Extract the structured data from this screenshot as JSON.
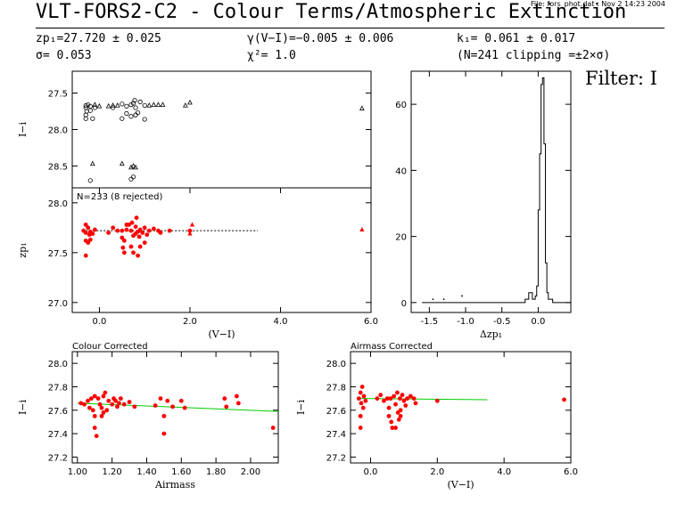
{
  "header": {
    "title": "VLT-FORS2-C2 - Colour Terms/Atmospheric Extinction",
    "file_info": "File: fors_phot.dat : Nov  2 14:23 2004",
    "zp": "zp₁=27.720 ± 0.025",
    "sigma": "σ= 0.053",
    "gamma": "γ(V−I)=−0.005 ± 0.006",
    "chi2": "χ²=  1.0",
    "k": "k₁= 0.061 ± 0.017",
    "n_clip": "(N=241 clipping =±2×σ)",
    "filter": "Filter: I"
  },
  "colors": {
    "points": "#ff0000",
    "fit": "#00cc00",
    "axes": "#000000"
  },
  "chart_data": [
    {
      "id": "top-left",
      "type": "scatter",
      "ylabel": "I−i",
      "xlim": [
        -0.6,
        6.0
      ],
      "ylim": [
        28.8,
        27.2
      ],
      "yticks": [
        27.5,
        28.0,
        28.5
      ],
      "series": [
        {
          "marker": "circle",
          "points": [
            [
              -0.3,
              27.67
            ],
            [
              -0.25,
              27.66
            ],
            [
              -0.2,
              27.68
            ],
            [
              -0.3,
              27.7
            ],
            [
              -0.28,
              27.75
            ],
            [
              -0.2,
              27.74
            ],
            [
              -0.1,
              27.7
            ],
            [
              0.3,
              27.7
            ],
            [
              0.5,
              27.65
            ],
            [
              0.6,
              27.68
            ],
            [
              0.7,
              27.66
            ],
            [
              0.75,
              27.64
            ],
            [
              0.8,
              27.7
            ],
            [
              0.9,
              27.62
            ],
            [
              1.0,
              27.67
            ],
            [
              0.78,
              27.6
            ],
            [
              -0.3,
              27.85
            ],
            [
              -0.15,
              27.85
            ],
            [
              0.5,
              27.85
            ],
            [
              0.7,
              27.82
            ],
            [
              0.8,
              27.8
            ],
            [
              1.0,
              27.86
            ],
            [
              0.6,
              27.78
            ],
            [
              0.85,
              27.77
            ],
            [
              -0.2,
              28.7
            ],
            [
              0.7,
              28.68
            ],
            [
              0.75,
              28.65
            ],
            [
              -0.3,
              27.8
            ]
          ]
        },
        {
          "marker": "triangle",
          "points": [
            [
              -0.1,
              27.66
            ],
            [
              0.0,
              27.68
            ],
            [
              0.2,
              27.68
            ],
            [
              0.3,
              27.67
            ],
            [
              0.4,
              27.67
            ],
            [
              1.1,
              27.67
            ],
            [
              1.2,
              27.66
            ],
            [
              1.3,
              27.66
            ],
            [
              1.4,
              27.66
            ],
            [
              1.9,
              27.67
            ],
            [
              2.0,
              27.63
            ],
            [
              5.8,
              27.71
            ],
            [
              -0.15,
              28.47
            ],
            [
              0.5,
              28.47
            ],
            [
              0.75,
              28.5
            ],
            [
              0.8,
              28.52
            ],
            [
              0.7,
              28.52
            ]
          ]
        }
      ]
    },
    {
      "id": "mid-left",
      "type": "scatter",
      "annotation": "N=233 (8 rejected)",
      "ylabel": "zp₁",
      "xlabel": "(V−I)",
      "xlim": [
        -0.6,
        6.0
      ],
      "ylim": [
        26.9,
        28.15
      ],
      "xticks": [
        0.0,
        2.0,
        4.0,
        6.0
      ],
      "yticks": [
        27.0,
        27.5,
        28.0
      ],
      "fit_line": {
        "x": [
          -0.3,
          3.5
        ],
        "y": [
          27.72,
          27.72
        ]
      },
      "points": [
        [
          -0.35,
          27.72
        ],
        [
          -0.3,
          27.78
        ],
        [
          -0.3,
          27.7
        ],
        [
          -0.25,
          27.75
        ],
        [
          -0.22,
          27.68
        ],
        [
          -0.2,
          27.71
        ],
        [
          -0.15,
          27.69
        ],
        [
          -0.1,
          27.73
        ],
        [
          -0.3,
          27.62
        ],
        [
          -0.25,
          27.6
        ],
        [
          -0.3,
          27.47
        ],
        [
          -0.2,
          27.63
        ],
        [
          0.2,
          27.7
        ],
        [
          0.3,
          27.75
        ],
        [
          0.4,
          27.72
        ],
        [
          0.5,
          27.72
        ],
        [
          0.5,
          27.65
        ],
        [
          0.52,
          27.55
        ],
        [
          0.55,
          27.62
        ],
        [
          0.55,
          27.5
        ],
        [
          0.6,
          27.73
        ],
        [
          0.65,
          27.78
        ],
        [
          0.7,
          27.72
        ],
        [
          0.75,
          27.67
        ],
        [
          0.8,
          27.76
        ],
        [
          0.8,
          27.69
        ],
        [
          0.82,
          27.85
        ],
        [
          0.85,
          27.71
        ],
        [
          0.88,
          27.66
        ],
        [
          0.9,
          27.73
        ],
        [
          0.95,
          27.7
        ],
        [
          1.0,
          27.75
        ],
        [
          1.05,
          27.68
        ],
        [
          1.1,
          27.72
        ],
        [
          1.2,
          27.74
        ],
        [
          1.3,
          27.72
        ],
        [
          1.35,
          27.7
        ],
        [
          0.7,
          27.56
        ],
        [
          0.75,
          27.5
        ],
        [
          0.85,
          27.47
        ],
        [
          0.9,
          27.56
        ],
        [
          1.0,
          27.6
        ],
        [
          0.6,
          27.78
        ],
        [
          0.72,
          27.8
        ],
        [
          1.55,
          27.72
        ],
        [
          2.0,
          27.72
        ]
      ],
      "triangles": [
        [
          2.05,
          27.78
        ],
        [
          2.0,
          27.69
        ],
        [
          5.8,
          27.73
        ]
      ]
    },
    {
      "id": "hist",
      "type": "histogram",
      "xlabel": "Δzp₁",
      "xlim": [
        -1.75,
        0.45
      ],
      "ylim": [
        -3,
        70
      ],
      "xticks": [
        -1.5,
        -1.0,
        -0.5,
        0.0
      ],
      "yticks": [
        0,
        20,
        40,
        60
      ],
      "bins": [
        [
          -1.6,
          0
        ],
        [
          -0.3,
          0
        ],
        [
          -0.18,
          1
        ],
        [
          -0.13,
          3
        ],
        [
          -0.08,
          1
        ],
        [
          -0.04,
          2
        ],
        [
          -0.02,
          5
        ],
        [
          0.0,
          28
        ],
        [
          0.02,
          45
        ],
        [
          0.04,
          66
        ],
        [
          0.06,
          68
        ],
        [
          0.08,
          48
        ],
        [
          0.1,
          12
        ],
        [
          0.12,
          3
        ],
        [
          0.14,
          1
        ],
        [
          0.2,
          0
        ],
        [
          0.45,
          0
        ]
      ],
      "dots": [
        [
          -1.45,
          1
        ],
        [
          -1.3,
          1
        ],
        [
          -1.05,
          2
        ]
      ]
    },
    {
      "id": "colour-corrected",
      "type": "scatter",
      "title": "Colour Corrected",
      "ylabel": "I−i",
      "xlabel": "Airmass",
      "xlim": [
        0.97,
        2.16
      ],
      "ylim": [
        27.15,
        28.1
      ],
      "xticks": [
        1.0,
        1.2,
        1.4,
        1.6,
        1.8,
        2.0
      ],
      "xticklabels": [
        "1.00",
        "1.20",
        "1.40",
        "1.60",
        "1.80",
        "2.00"
      ],
      "yticks": [
        27.2,
        27.4,
        27.6,
        27.8,
        28.0
      ],
      "fit_line": {
        "x": [
          1.0,
          2.16
        ],
        "y": [
          27.66,
          27.59
        ]
      },
      "points": [
        [
          1.02,
          27.66
        ],
        [
          1.04,
          27.65
        ],
        [
          1.06,
          27.68
        ],
        [
          1.07,
          27.62
        ],
        [
          1.08,
          27.7
        ],
        [
          1.09,
          27.6
        ],
        [
          1.1,
          27.55
        ],
        [
          1.1,
          27.45
        ],
        [
          1.11,
          27.38
        ],
        [
          1.12,
          27.7
        ],
        [
          1.13,
          27.65
        ],
        [
          1.14,
          27.62
        ],
        [
          1.15,
          27.58
        ],
        [
          1.15,
          27.72
        ],
        [
          1.16,
          27.75
        ],
        [
          1.17,
          27.6
        ],
        [
          1.18,
          27.68
        ],
        [
          1.2,
          27.65
        ],
        [
          1.21,
          27.7
        ],
        [
          1.22,
          27.68
        ],
        [
          1.23,
          27.63
        ],
        [
          1.24,
          27.66
        ],
        [
          1.25,
          27.7
        ],
        [
          1.27,
          27.65
        ],
        [
          1.3,
          27.67
        ],
        [
          1.33,
          27.63
        ],
        [
          1.45,
          27.64
        ],
        [
          1.48,
          27.7
        ],
        [
          1.5,
          27.55
        ],
        [
          1.5,
          27.4
        ],
        [
          1.52,
          27.68
        ],
        [
          1.55,
          27.63
        ],
        [
          1.6,
          27.68
        ],
        [
          1.62,
          27.62
        ],
        [
          1.85,
          27.7
        ],
        [
          1.86,
          27.63
        ],
        [
          1.92,
          27.72
        ],
        [
          1.93,
          27.66
        ],
        [
          2.13,
          27.45
        ],
        [
          1.1,
          27.72
        ],
        [
          1.14,
          27.55
        ]
      ]
    },
    {
      "id": "airmass-corrected",
      "type": "scatter",
      "title": "Airmass Corrected",
      "ylabel": "I−i",
      "xlabel": "(V−I)",
      "xlim": [
        -0.6,
        6.0
      ],
      "ylim": [
        27.15,
        28.1
      ],
      "xticks": [
        0.0,
        2.0,
        4.0,
        6.0
      ],
      "yticks": [
        27.2,
        27.4,
        27.6,
        27.8,
        28.0
      ],
      "fit_line": {
        "x": [
          -0.3,
          3.5
        ],
        "y": [
          27.7,
          27.69
        ]
      },
      "points": [
        [
          -0.35,
          27.7
        ],
        [
          -0.3,
          27.75
        ],
        [
          -0.28,
          27.66
        ],
        [
          -0.25,
          27.8
        ],
        [
          -0.22,
          27.62
        ],
        [
          -0.2,
          27.72
        ],
        [
          -0.3,
          27.55
        ],
        [
          -0.3,
          27.45
        ],
        [
          -0.15,
          27.68
        ],
        [
          0.2,
          27.7
        ],
        [
          0.3,
          27.73
        ],
        [
          0.4,
          27.68
        ],
        [
          0.5,
          27.7
        ],
        [
          0.55,
          27.62
        ],
        [
          0.55,
          27.55
        ],
        [
          0.6,
          27.7
        ],
        [
          0.62,
          27.5
        ],
        [
          0.65,
          27.45
        ],
        [
          0.7,
          27.72
        ],
        [
          0.75,
          27.65
        ],
        [
          0.8,
          27.75
        ],
        [
          0.82,
          27.58
        ],
        [
          0.85,
          27.52
        ],
        [
          0.88,
          27.7
        ],
        [
          0.9,
          27.6
        ],
        [
          0.95,
          27.73
        ],
        [
          1.0,
          27.68
        ],
        [
          1.05,
          27.64
        ],
        [
          1.1,
          27.7
        ],
        [
          1.2,
          27.72
        ],
        [
          1.3,
          27.7
        ],
        [
          1.35,
          27.66
        ],
        [
          2.0,
          27.68
        ],
        [
          5.8,
          27.69
        ],
        [
          0.75,
          27.45
        ],
        [
          0.9,
          27.55
        ]
      ]
    }
  ]
}
